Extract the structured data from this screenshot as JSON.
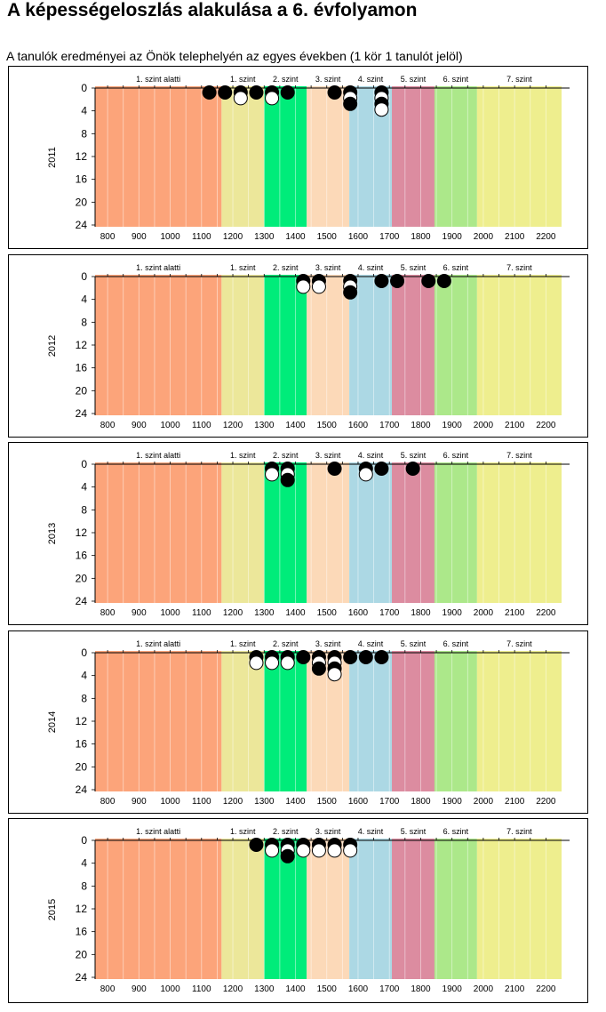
{
  "page": {
    "title": "A képességeloszlás alakulása a 6. évfolyamon",
    "subtitle": "A tanulók eredményei az Önök telephelyén az egyes években (1 kör 1 tanulót jelöl)"
  },
  "colors": {
    "bands": [
      "#fca47a",
      "#ece79a",
      "#00ec7a",
      "#fcd9b8",
      "#acd8e4",
      "#dc8ca0",
      "#ace88a",
      "#eeee8e"
    ],
    "gridline": "#ffffff",
    "axis": "#000000",
    "dot_filled": "#000000",
    "dot_open": "#ffffff"
  },
  "chart_data": [
    {
      "type": "scatter",
      "year": "2011",
      "xlim": [
        760,
        2250
      ],
      "ylim": [
        0,
        24
      ],
      "x_ticks": [
        800,
        900,
        1000,
        1100,
        1200,
        1300,
        1400,
        1500,
        1600,
        1700,
        1800,
        1900,
        2000,
        2100,
        2200
      ],
      "y_ticks": [
        0,
        4,
        8,
        12,
        16,
        20,
        24
      ],
      "levels": [
        {
          "label": "1. szint alatti",
          "from": 760,
          "to": 1164
        },
        {
          "label": "1. szint",
          "from": 1164,
          "to": 1300
        },
        {
          "label": "2. szint",
          "from": 1300,
          "to": 1436
        },
        {
          "label": "3. szint",
          "from": 1436,
          "to": 1572
        },
        {
          "label": "4. szint",
          "from": 1572,
          "to": 1708
        },
        {
          "label": "5. szint",
          "from": 1708,
          "to": 1844
        },
        {
          "label": "6. szint",
          "from": 1844,
          "to": 1980
        },
        {
          "label": "7. szint",
          "from": 1980,
          "to": 2250
        }
      ],
      "points": [
        {
          "x": 1125,
          "count": 1
        },
        {
          "x": 1175,
          "count": 1
        },
        {
          "x": 1225,
          "count": 2
        },
        {
          "x": 1275,
          "count": 1
        },
        {
          "x": 1325,
          "count": 2
        },
        {
          "x": 1375,
          "count": 1
        },
        {
          "x": 1525,
          "count": 1
        },
        {
          "x": 1575,
          "count": 3
        },
        {
          "x": 1675,
          "count": 4
        }
      ]
    },
    {
      "type": "scatter",
      "year": "2012",
      "xlim": [
        760,
        2250
      ],
      "ylim": [
        0,
        24
      ],
      "x_ticks": [
        800,
        900,
        1000,
        1100,
        1200,
        1300,
        1400,
        1500,
        1600,
        1700,
        1800,
        1900,
        2000,
        2100,
        2200
      ],
      "y_ticks": [
        0,
        4,
        8,
        12,
        16,
        20,
        24
      ],
      "levels": [
        {
          "label": "1. szint alatti",
          "from": 760,
          "to": 1164
        },
        {
          "label": "1. szint",
          "from": 1164,
          "to": 1300
        },
        {
          "label": "2. szint",
          "from": 1300,
          "to": 1436
        },
        {
          "label": "3. szint",
          "from": 1436,
          "to": 1572
        },
        {
          "label": "4. szint",
          "from": 1572,
          "to": 1708
        },
        {
          "label": "5. szint",
          "from": 1708,
          "to": 1844
        },
        {
          "label": "6. szint",
          "from": 1844,
          "to": 1980
        },
        {
          "label": "7. szint",
          "from": 1980,
          "to": 2250
        }
      ],
      "points": [
        {
          "x": 1425,
          "count": 2
        },
        {
          "x": 1475,
          "count": 2
        },
        {
          "x": 1575,
          "count": 3
        },
        {
          "x": 1675,
          "count": 1
        },
        {
          "x": 1725,
          "count": 1
        },
        {
          "x": 1825,
          "count": 1
        },
        {
          "x": 1875,
          "count": 1
        }
      ]
    },
    {
      "type": "scatter",
      "year": "2013",
      "xlim": [
        760,
        2250
      ],
      "ylim": [
        0,
        24
      ],
      "x_ticks": [
        800,
        900,
        1000,
        1100,
        1200,
        1300,
        1400,
        1500,
        1600,
        1700,
        1800,
        1900,
        2000,
        2100,
        2200
      ],
      "y_ticks": [
        0,
        4,
        8,
        12,
        16,
        20,
        24
      ],
      "levels": [
        {
          "label": "1. szint alatti",
          "from": 760,
          "to": 1164
        },
        {
          "label": "1. szint",
          "from": 1164,
          "to": 1300
        },
        {
          "label": "2. szint",
          "from": 1300,
          "to": 1436
        },
        {
          "label": "3. szint",
          "from": 1436,
          "to": 1572
        },
        {
          "label": "4. szint",
          "from": 1572,
          "to": 1708
        },
        {
          "label": "5. szint",
          "from": 1708,
          "to": 1844
        },
        {
          "label": "6. szint",
          "from": 1844,
          "to": 1980
        },
        {
          "label": "7. szint",
          "from": 1980,
          "to": 2250
        }
      ],
      "points": [
        {
          "x": 1325,
          "count": 2
        },
        {
          "x": 1375,
          "count": 3
        },
        {
          "x": 1525,
          "count": 1
        },
        {
          "x": 1625,
          "count": 2
        },
        {
          "x": 1675,
          "count": 1
        },
        {
          "x": 1775,
          "count": 1
        }
      ]
    },
    {
      "type": "scatter",
      "year": "2014",
      "xlim": [
        760,
        2250
      ],
      "ylim": [
        0,
        24
      ],
      "x_ticks": [
        800,
        900,
        1000,
        1100,
        1200,
        1300,
        1400,
        1500,
        1600,
        1700,
        1800,
        1900,
        2000,
        2100,
        2200
      ],
      "y_ticks": [
        0,
        4,
        8,
        12,
        16,
        20,
        24
      ],
      "levels": [
        {
          "label": "1. szint alatti",
          "from": 760,
          "to": 1164
        },
        {
          "label": "1. szint",
          "from": 1164,
          "to": 1300
        },
        {
          "label": "2. szint",
          "from": 1300,
          "to": 1436
        },
        {
          "label": "3. szint",
          "from": 1436,
          "to": 1572
        },
        {
          "label": "4. szint",
          "from": 1572,
          "to": 1708
        },
        {
          "label": "5. szint",
          "from": 1708,
          "to": 1844
        },
        {
          "label": "6. szint",
          "from": 1844,
          "to": 1980
        },
        {
          "label": "7. szint",
          "from": 1980,
          "to": 2250
        }
      ],
      "points": [
        {
          "x": 1275,
          "count": 2
        },
        {
          "x": 1325,
          "count": 2
        },
        {
          "x": 1375,
          "count": 2
        },
        {
          "x": 1425,
          "count": 1
        },
        {
          "x": 1475,
          "count": 3
        },
        {
          "x": 1525,
          "count": 4
        },
        {
          "x": 1575,
          "count": 1
        },
        {
          "x": 1625,
          "count": 1
        },
        {
          "x": 1675,
          "count": 1
        }
      ]
    },
    {
      "type": "scatter",
      "year": "2015",
      "xlim": [
        760,
        2250
      ],
      "ylim": [
        0,
        24
      ],
      "x_ticks": [
        800,
        900,
        1000,
        1100,
        1200,
        1300,
        1400,
        1500,
        1600,
        1700,
        1800,
        1900,
        2000,
        2100,
        2200
      ],
      "y_ticks": [
        0,
        4,
        8,
        12,
        16,
        20,
        24
      ],
      "levels": [
        {
          "label": "1. szint alatti",
          "from": 760,
          "to": 1164
        },
        {
          "label": "1. szint",
          "from": 1164,
          "to": 1300
        },
        {
          "label": "2. szint",
          "from": 1300,
          "to": 1436
        },
        {
          "label": "3. szint",
          "from": 1436,
          "to": 1572
        },
        {
          "label": "4. szint",
          "from": 1572,
          "to": 1708
        },
        {
          "label": "5. szint",
          "from": 1708,
          "to": 1844
        },
        {
          "label": "6. szint",
          "from": 1844,
          "to": 1980
        },
        {
          "label": "7. szint",
          "from": 1980,
          "to": 2250
        }
      ],
      "points": [
        {
          "x": 1275,
          "count": 1
        },
        {
          "x": 1325,
          "count": 2
        },
        {
          "x": 1375,
          "count": 3
        },
        {
          "x": 1425,
          "count": 2
        },
        {
          "x": 1475,
          "count": 2
        },
        {
          "x": 1525,
          "count": 2
        },
        {
          "x": 1575,
          "count": 2
        }
      ]
    }
  ]
}
